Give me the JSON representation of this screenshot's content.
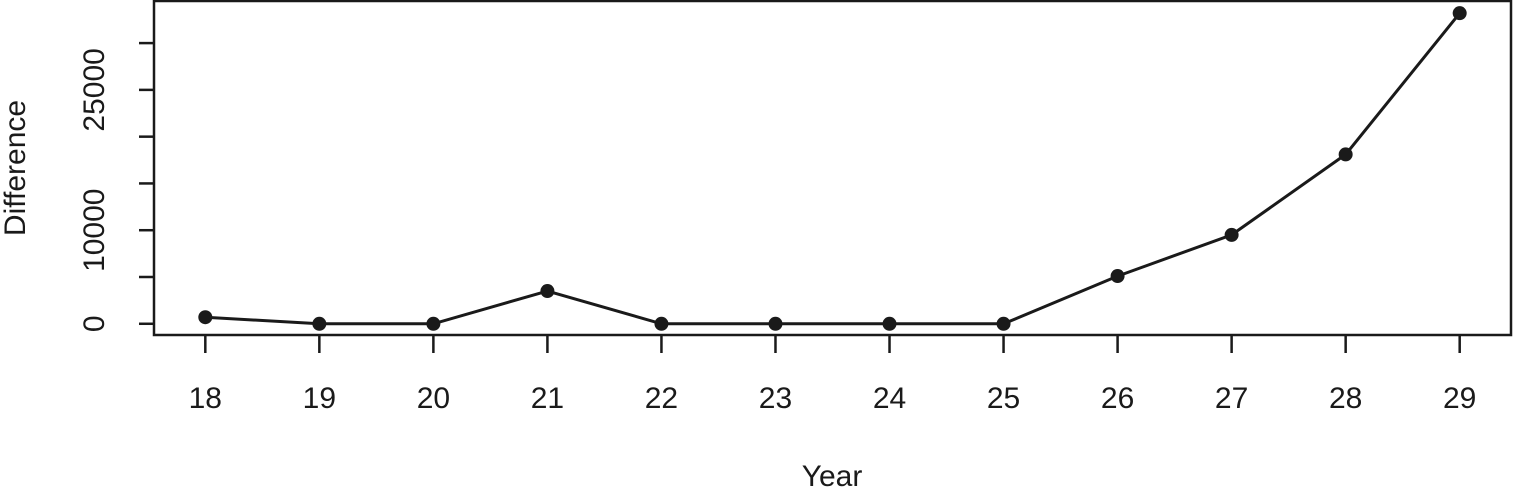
{
  "chart_data": {
    "type": "line",
    "title": "",
    "xlabel": "Year",
    "ylabel": "Difference",
    "x": [
      18,
      19,
      20,
      21,
      22,
      23,
      24,
      25,
      26,
      27,
      28,
      29
    ],
    "y": [
      700,
      0,
      0,
      3500,
      0,
      0,
      0,
      0,
      5100,
      9500,
      18100,
      33200
    ],
    "x_ticks": [
      "18",
      "19",
      "20",
      "21",
      "22",
      "23",
      "24",
      "25",
      "26",
      "27",
      "28",
      "29"
    ],
    "y_ticks": [
      "0",
      "10000",
      "25000"
    ],
    "y_tick_values": [
      0,
      10000,
      25000
    ],
    "y_minor_ticks": [
      5000,
      15000,
      20000,
      30000
    ],
    "ylim": [
      -1200,
      34500
    ],
    "xlim": [
      17.55,
      29.45
    ],
    "grid": false,
    "legend": "none",
    "line_color": "#1a1a1a",
    "marker": "filled-circle"
  }
}
